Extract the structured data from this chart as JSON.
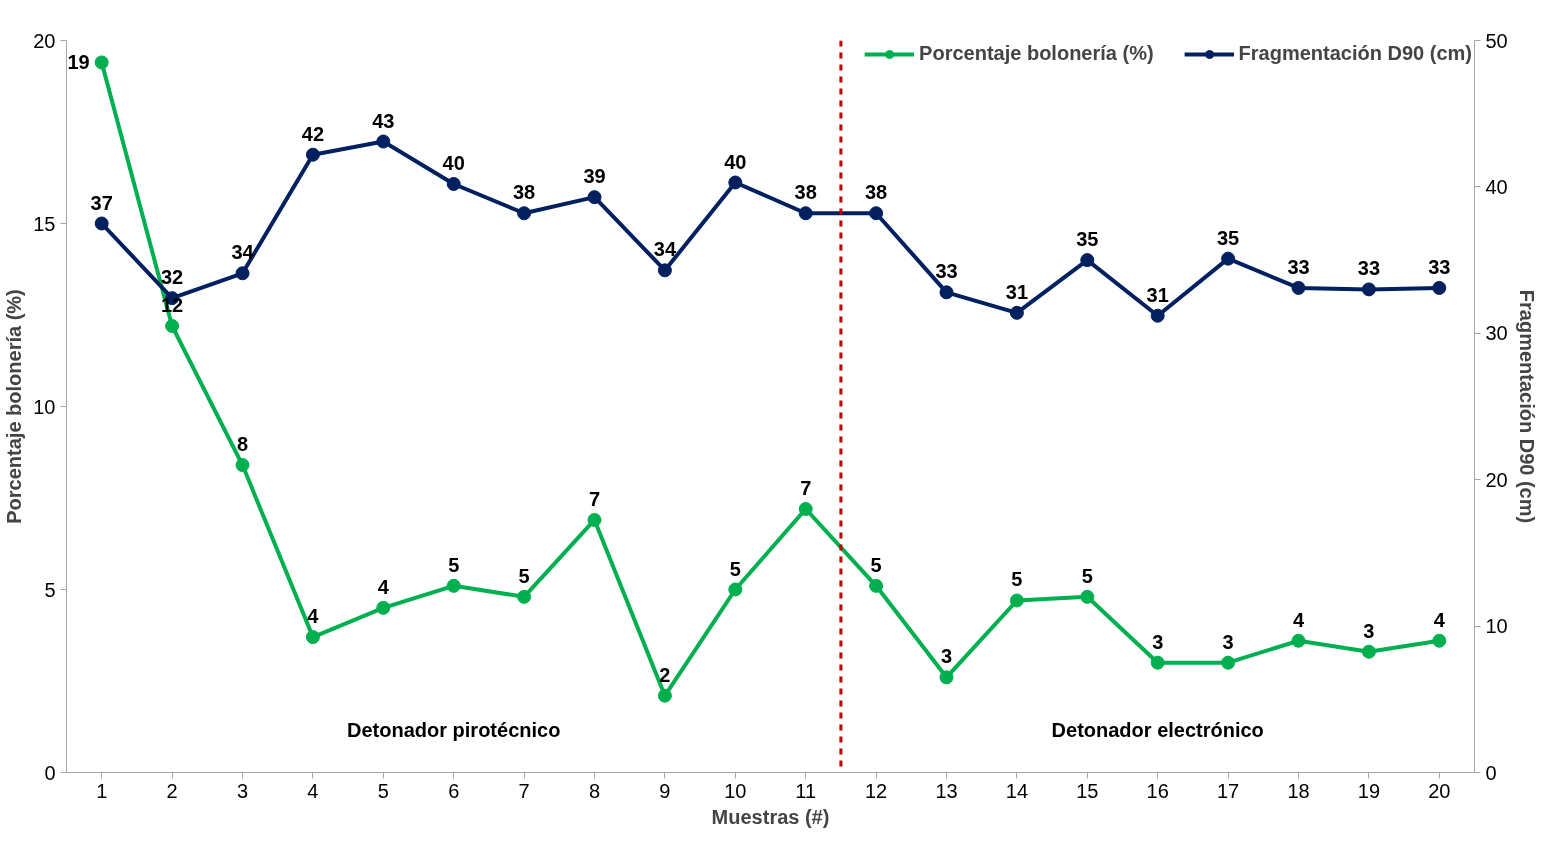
{
  "chart_data": {
    "type": "line",
    "xlabel": "Muestras (#)",
    "ylabel": "Porcentaje bolonería (%)",
    "y2label": "Fragmentación D90 (cm)",
    "x": [
      1,
      2,
      3,
      4,
      5,
      6,
      7,
      8,
      9,
      10,
      11,
      12,
      13,
      14,
      15,
      16,
      17,
      18,
      19,
      20
    ],
    "xlim": [
      0.5,
      20.5
    ],
    "xticks": [
      1,
      2,
      3,
      4,
      5,
      6,
      7,
      8,
      9,
      10,
      11,
      12,
      13,
      14,
      15,
      16,
      17,
      18,
      19,
      20
    ],
    "ylim": [
      0,
      20
    ],
    "yticks": [
      0,
      5,
      10,
      15,
      20
    ],
    "y2lim": [
      0,
      50
    ],
    "y2ticks": [
      0,
      10,
      20,
      30,
      40,
      50
    ],
    "series": [
      {
        "name": "Porcentaje bolonería (%)",
        "color": "#00b050",
        "values": [
          19.4,
          12.2,
          8.4,
          3.7,
          4.5,
          5.1,
          4.8,
          6.9,
          2.1,
          5.0,
          7.2,
          5.1,
          2.6,
          4.7,
          4.8,
          3.0,
          3.0,
          3.6,
          3.3,
          3.6
        ],
        "value_labels": [
          "19",
          "12",
          "8",
          "4",
          "4",
          "5",
          "5",
          "7",
          "2",
          "5",
          "7",
          "5",
          "3",
          "5",
          "5",
          "3",
          "3",
          "4",
          "3",
          "4"
        ]
      },
      {
        "name": "Fragmentación D90 (cm)",
        "color": "#002060",
        "axis": "y2",
        "values": [
          37.5,
          32.4,
          34.1,
          42.2,
          43.1,
          40.2,
          38.2,
          39.3,
          34.3,
          40.3,
          38.2,
          38.2,
          32.8,
          31.4,
          35.0,
          31.2,
          35.1,
          33.1,
          33.0,
          33.1
        ],
        "value_labels": [
          "37",
          "32",
          "34",
          "42",
          "43",
          "40",
          "38",
          "39",
          "34",
          "40",
          "38",
          "38",
          "33",
          "31",
          "35",
          "31",
          "35",
          "33",
          "33",
          "33"
        ]
      }
    ],
    "ref_lines": [
      {
        "axis": "x",
        "value": 11.5,
        "color": "#c00000",
        "line_style": "dashed"
      }
    ],
    "annotations": [
      "Detonador pirotécnico",
      "Detonador electrónico"
    ],
    "marker": "circle",
    "line_style": "solid",
    "grid": false,
    "legend": "top right"
  }
}
